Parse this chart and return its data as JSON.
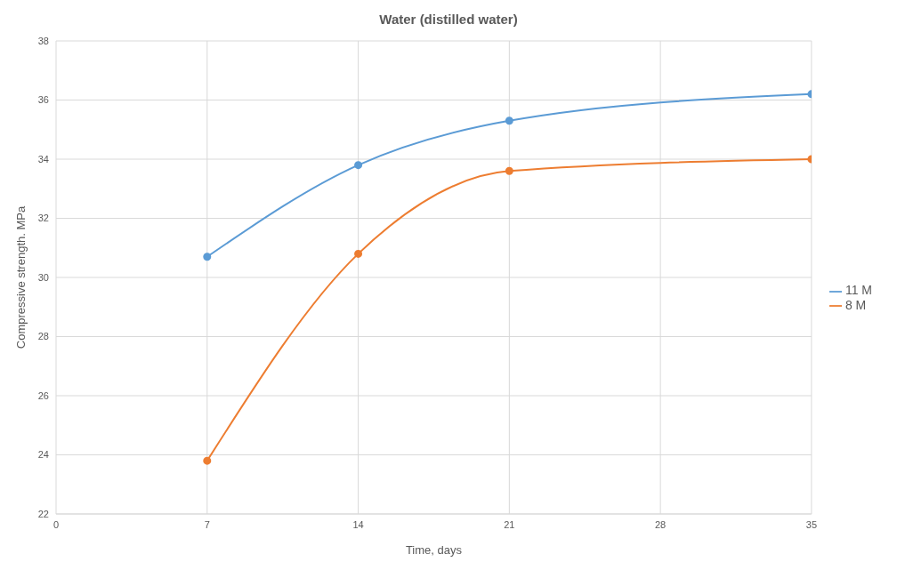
{
  "chart_data": {
    "type": "line",
    "title": "Water (distilled water)",
    "xlabel": "Time, days",
    "ylabel": "Compressive strength. MPa",
    "x": [
      7,
      14,
      21,
      35
    ],
    "series": [
      {
        "name": "11 M",
        "color": "#5b9bd5",
        "values": [
          30.7,
          33.8,
          35.3,
          36.2
        ]
      },
      {
        "name": "8 M",
        "color": "#ed7d31",
        "values": [
          23.8,
          30.8,
          33.6,
          34.0
        ]
      }
    ],
    "xlim": [
      0,
      35
    ],
    "xticks": [
      0,
      7,
      14,
      21,
      28,
      35
    ],
    "ylim": [
      22,
      38
    ],
    "yticks": [
      22,
      24,
      26,
      28,
      30,
      32,
      34,
      36,
      38
    ],
    "grid": true,
    "legend": "right",
    "marker": "circle",
    "line_style": "solid"
  }
}
